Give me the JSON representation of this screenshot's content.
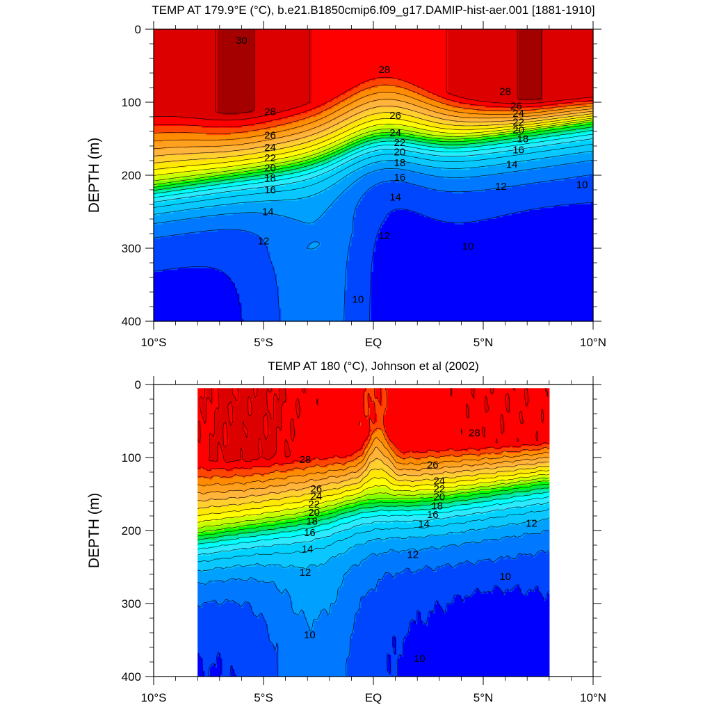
{
  "chart_data": [
    {
      "type": "heatmap",
      "subtype": "filled-contour depth section",
      "title": "TEMP AT 179.9°E (°C), b.e21.B1850cmip6.f09_g17.DAMIP-hist-aer.001 [1881-1910]",
      "ylabel": "DEPTH (m)",
      "xlabel": "",
      "xlim": [
        -10,
        10
      ],
      "ylim": [
        0,
        400
      ],
      "y_inverted": true,
      "x_ticks": [
        "10°S",
        "5°S",
        "EQ",
        "5°N",
        "10°N"
      ],
      "y_ticks": [
        "0",
        "100",
        "200",
        "300",
        "400"
      ],
      "data_extent": {
        "lat": [
          -10,
          10
        ],
        "depth": [
          0,
          400
        ]
      },
      "contour_interval": 1,
      "contour_levels": [
        9,
        10,
        11,
        12,
        13,
        14,
        15,
        16,
        17,
        18,
        19,
        20,
        21,
        22,
        23,
        24,
        25,
        26,
        27,
        28,
        29,
        30
      ],
      "contour_labels": [
        {
          "text": "30",
          "lat": -6.0,
          "depth": 15
        },
        {
          "text": "28",
          "lat": 0.5,
          "depth": 55
        },
        {
          "text": "28",
          "lat": 6.0,
          "depth": 85
        },
        {
          "text": "28",
          "lat": -4.7,
          "depth": 113
        },
        {
          "text": "26",
          "lat": 1.0,
          "depth": 118
        },
        {
          "text": "26",
          "lat": 6.5,
          "depth": 105
        },
        {
          "text": "24",
          "lat": 6.6,
          "depth": 115
        },
        {
          "text": "22",
          "lat": 6.6,
          "depth": 127
        },
        {
          "text": "20",
          "lat": 6.6,
          "depth": 138
        },
        {
          "text": "18",
          "lat": 6.8,
          "depth": 150
        },
        {
          "text": "16",
          "lat": 6.6,
          "depth": 165
        },
        {
          "text": "14",
          "lat": 6.3,
          "depth": 185
        },
        {
          "text": "12",
          "lat": 5.8,
          "depth": 215
        },
        {
          "text": "10",
          "lat": 9.5,
          "depth": 213
        },
        {
          "text": "24",
          "lat": 1.0,
          "depth": 142
        },
        {
          "text": "22",
          "lat": 1.2,
          "depth": 155
        },
        {
          "text": "20",
          "lat": 1.2,
          "depth": 168
        },
        {
          "text": "18",
          "lat": 1.2,
          "depth": 183
        },
        {
          "text": "16",
          "lat": 1.2,
          "depth": 203
        },
        {
          "text": "14",
          "lat": 1.0,
          "depth": 230
        },
        {
          "text": "12",
          "lat": 0.5,
          "depth": 283
        },
        {
          "text": "10",
          "lat": 4.3,
          "depth": 297
        },
        {
          "text": "10",
          "lat": -0.7,
          "depth": 370
        },
        {
          "text": "26",
          "lat": -4.7,
          "depth": 145
        },
        {
          "text": "24",
          "lat": -4.7,
          "depth": 162
        },
        {
          "text": "22",
          "lat": -4.7,
          "depth": 176
        },
        {
          "text": "20",
          "lat": -4.7,
          "depth": 190
        },
        {
          "text": "18",
          "lat": -4.7,
          "depth": 204
        },
        {
          "text": "16",
          "lat": -4.7,
          "depth": 220
        },
        {
          "text": "14",
          "lat": -4.8,
          "depth": 250
        },
        {
          "text": "12",
          "lat": -5.0,
          "depth": 290
        }
      ],
      "colors": {
        "30": "#a50000",
        "29": "#dc0000",
        "28": "#ff0000",
        "27": "#ff4600",
        "26": "#ff8c00",
        "25": "#ffa01e",
        "24": "#ffb43c",
        "23": "#ffd02e",
        "22": "#ffe900",
        "21": "#ffff00",
        "20": "#c6ff00",
        "19": "#7dff00",
        "18": "#00ff00",
        "17": "#00e64b",
        "16": "#00eeb4",
        "15": "#00ffff",
        "14": "#2ee9ff",
        "13": "#00d2ff",
        "12": "#0ac8ff",
        "11": "#00a0ff",
        "10": "#0078ff",
        "9": "#0046ff",
        "8": "#0000ff"
      }
    },
    {
      "type": "heatmap",
      "subtype": "filled-contour depth section",
      "title": "TEMP AT 180 (°C), Johnson et al (2002)",
      "ylabel": "DEPTH (m)",
      "xlabel": "",
      "xlim": [
        -10,
        10
      ],
      "ylim": [
        0,
        400
      ],
      "y_inverted": true,
      "x_ticks": [
        "10°S",
        "5°S",
        "EQ",
        "5°N",
        "10°N"
      ],
      "y_ticks": [
        "0",
        "100",
        "200",
        "300",
        "400"
      ],
      "data_extent": {
        "lat": [
          -8,
          8
        ],
        "depth": [
          5,
          400
        ]
      },
      "contour_interval": 1,
      "contour_levels": [
        9,
        10,
        11,
        12,
        13,
        14,
        15,
        16,
        17,
        18,
        19,
        20,
        21,
        22,
        23,
        24,
        25,
        26,
        27,
        28,
        29
      ],
      "contour_labels": [
        {
          "text": "28",
          "lat": 4.6,
          "depth": 66
        },
        {
          "text": "28",
          "lat": -3.1,
          "depth": 103
        },
        {
          "text": "26",
          "lat": 2.7,
          "depth": 110
        },
        {
          "text": "24",
          "lat": 3.0,
          "depth": 132
        },
        {
          "text": "22",
          "lat": 3.0,
          "depth": 143
        },
        {
          "text": "20",
          "lat": 3.0,
          "depth": 154
        },
        {
          "text": "18",
          "lat": 2.9,
          "depth": 166
        },
        {
          "text": "16",
          "lat": 2.7,
          "depth": 178
        },
        {
          "text": "14",
          "lat": 2.3,
          "depth": 191
        },
        {
          "text": "12",
          "lat": 7.2,
          "depth": 190
        },
        {
          "text": "12",
          "lat": 1.8,
          "depth": 233
        },
        {
          "text": "10",
          "lat": 6.0,
          "depth": 263
        },
        {
          "text": "10",
          "lat": 2.1,
          "depth": 375
        },
        {
          "text": "10",
          "lat": -2.9,
          "depth": 343
        },
        {
          "text": "12",
          "lat": -3.1,
          "depth": 257
        },
        {
          "text": "14",
          "lat": -3.0,
          "depth": 225
        },
        {
          "text": "16",
          "lat": -2.9,
          "depth": 203
        },
        {
          "text": "18",
          "lat": -2.8,
          "depth": 187
        },
        {
          "text": "20",
          "lat": -2.7,
          "depth": 175
        },
        {
          "text": "22",
          "lat": -2.7,
          "depth": 164
        },
        {
          "text": "24",
          "lat": -2.6,
          "depth": 153
        },
        {
          "text": "26",
          "lat": -2.6,
          "depth": 143
        }
      ],
      "colors": {
        "30": "#a50000",
        "29": "#dc0000",
        "28": "#ff0000",
        "27": "#ff4600",
        "26": "#ff8c00",
        "25": "#ffa01e",
        "24": "#ffb43c",
        "23": "#ffd02e",
        "22": "#ffe900",
        "21": "#ffff00",
        "20": "#c6ff00",
        "19": "#7dff00",
        "18": "#00ff00",
        "17": "#00e64b",
        "16": "#00eeb4",
        "15": "#00ffff",
        "14": "#2ee9ff",
        "13": "#00d2ff",
        "12": "#0ac8ff",
        "11": "#00a0ff",
        "10": "#0078ff",
        "9": "#0046ff",
        "8": "#0000ff"
      }
    }
  ]
}
